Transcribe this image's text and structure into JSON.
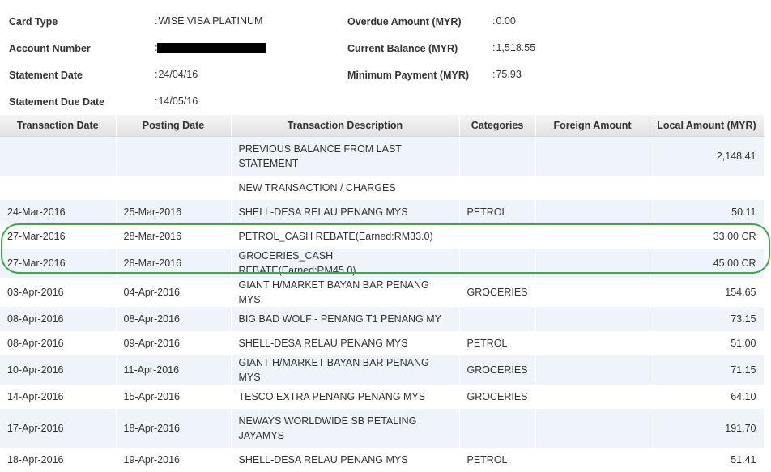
{
  "summary": {
    "card_type_label": "Card Type",
    "card_type_value": "WISE VISA PLATINUM",
    "account_number_label": "Account Number",
    "account_number_value": "",
    "statement_date_label": "Statement Date",
    "statement_date_value": "24/04/16",
    "statement_due_date_label": "Statement Due Date",
    "statement_due_date_value": "14/05/16",
    "overdue_amount_label": "Overdue Amount (MYR)",
    "overdue_amount_value": "0.00",
    "current_balance_label": "Current Balance (MYR)",
    "current_balance_value": "1,518.55",
    "minimum_payment_label": "Minimum Payment (MYR)",
    "minimum_payment_value": "75.93"
  },
  "table": {
    "headers": [
      "Transaction Date",
      "Posting Date",
      "Transaction Description",
      "Categories",
      "Foreign Amount",
      "Local Amount (MYR)"
    ],
    "rows": [
      [
        "",
        "",
        "PREVIOUS BALANCE FROM LAST STATEMENT",
        "",
        "",
        "2,148.41"
      ],
      [
        "",
        "",
        "NEW TRANSACTION / CHARGES",
        "",
        "",
        ""
      ],
      [
        "24-Mar-2016",
        "25-Mar-2016",
        "SHELL-DESA RELAU PENANG MYS",
        "PETROL",
        "",
        "50.11"
      ],
      [
        "27-Mar-2016",
        "28-Mar-2016",
        "PETROL_CASH REBATE(Earned:RM33.0)",
        "",
        "",
        "33.00 CR"
      ],
      [
        "27-Mar-2016",
        "28-Mar-2016",
        "GROCERIES_CASH REBATE(Earned:RM45.0)",
        "",
        "",
        "45.00 CR"
      ],
      [
        "03-Apr-2016",
        "04-Apr-2016",
        "GIANT H/MARKET BAYAN BAR PENANG MYS",
        "GROCERIES",
        "",
        "154.65"
      ],
      [
        "08-Apr-2016",
        "08-Apr-2016",
        "BIG BAD WOLF - PENANG T1 PENANG MY",
        "",
        "",
        "73.15"
      ],
      [
        "08-Apr-2016",
        "09-Apr-2016",
        "SHELL-DESA RELAU PENANG MYS",
        "PETROL",
        "",
        "51.00"
      ],
      [
        "10-Apr-2016",
        "11-Apr-2016",
        "GIANT H/MARKET BAYAN BAR PENANG MYS",
        "GROCERIES",
        "",
        "71.15"
      ],
      [
        "14-Apr-2016",
        "15-Apr-2016",
        "TESCO EXTRA PENANG PENANG MYS",
        "GROCERIES",
        "",
        "64.10"
      ],
      [
        "17-Apr-2016",
        "18-Apr-2016",
        "NEWAYS WORLDWIDE SB PETALING JAYAMYS",
        "",
        "",
        "191.70"
      ],
      [
        "18-Apr-2016",
        "19-Apr-2016",
        "SHELL-DESA RELAU PENANG MYS",
        "PETROL",
        "",
        "51.41"
      ]
    ]
  },
  "highlight_color": "#3aa64a",
  "row_alt_color": "#eef4fa"
}
